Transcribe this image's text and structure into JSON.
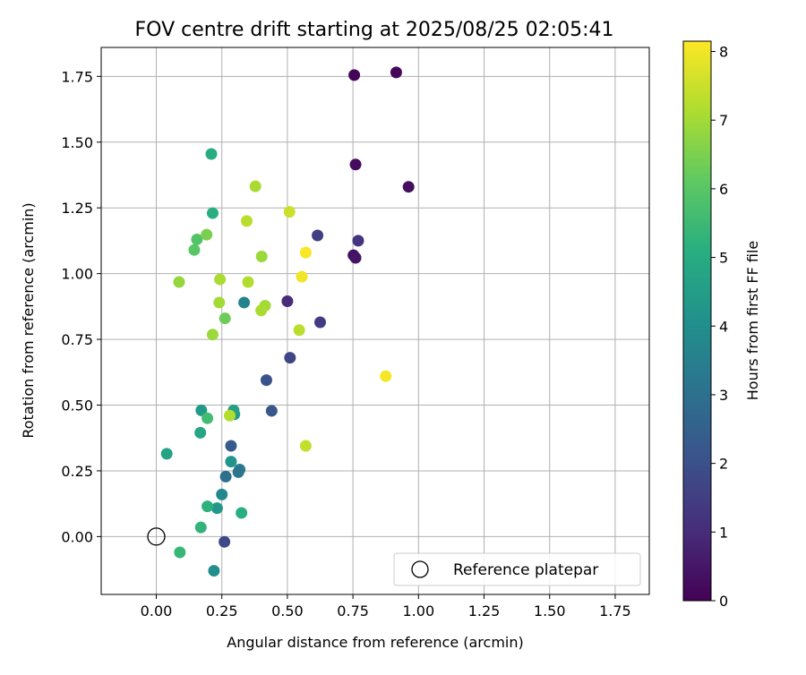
{
  "chart_data": {
    "type": "scatter",
    "title": "FOV centre drift starting at 2025/08/25 02:05:41",
    "xlabel": "Angular distance from reference (arcmin)",
    "ylabel": "Rotation from reference (arcmin)",
    "xlim": [
      -0.21,
      1.88
    ],
    "ylim": [
      -0.22,
      1.86
    ],
    "xticks": [
      "0.00",
      "0.25",
      "0.50",
      "0.75",
      "1.00",
      "1.25",
      "1.50",
      "1.75"
    ],
    "yticks": [
      "0.00",
      "0.25",
      "0.50",
      "0.75",
      "1.00",
      "1.25",
      "1.50",
      "1.75"
    ],
    "grid": true,
    "legend": {
      "placement": "bottom-right",
      "entries": [
        "Reference platepar"
      ]
    },
    "reference_point": {
      "x": 0.0,
      "y": 0.0,
      "label": "Reference platepar"
    },
    "colorbar": {
      "label": "Hours from first FF file",
      "colormap": "viridis",
      "range": [
        0,
        8.15
      ],
      "ticks": [
        "0",
        "1",
        "2",
        "3",
        "4",
        "5",
        "6",
        "7",
        "8"
      ]
    },
    "points": [
      {
        "x": 0.755,
        "y": 1.755,
        "h": 0.1
      },
      {
        "x": 0.915,
        "y": 1.765,
        "h": 0.15
      },
      {
        "x": 0.76,
        "y": 1.415,
        "h": 0.25
      },
      {
        "x": 0.962,
        "y": 1.33,
        "h": 0.3
      },
      {
        "x": 0.752,
        "y": 1.07,
        "h": 0.35
      },
      {
        "x": 0.76,
        "y": 1.06,
        "h": 0.45
      },
      {
        "x": 0.5,
        "y": 0.895,
        "h": 1.0
      },
      {
        "x": 0.77,
        "y": 1.125,
        "h": 1.2
      },
      {
        "x": 0.615,
        "y": 1.145,
        "h": 1.5
      },
      {
        "x": 0.625,
        "y": 0.815,
        "h": 1.4
      },
      {
        "x": 0.51,
        "y": 0.68,
        "h": 1.7
      },
      {
        "x": 0.42,
        "y": 0.595,
        "h": 2.1
      },
      {
        "x": 0.44,
        "y": 0.478,
        "h": 2.2
      },
      {
        "x": 0.26,
        "y": -0.02,
        "h": 1.8
      },
      {
        "x": 0.285,
        "y": 0.345,
        "h": 2.3
      },
      {
        "x": 0.335,
        "y": 0.89,
        "h": 3.6
      },
      {
        "x": 0.318,
        "y": 0.255,
        "h": 3.4
      },
      {
        "x": 0.313,
        "y": 0.245,
        "h": 3.2
      },
      {
        "x": 0.265,
        "y": 0.228,
        "h": 3.0
      },
      {
        "x": 0.25,
        "y": 0.16,
        "h": 3.8
      },
      {
        "x": 0.232,
        "y": 0.108,
        "h": 4.3
      },
      {
        "x": 0.22,
        "y": -0.13,
        "h": 4.0
      },
      {
        "x": 0.285,
        "y": 0.285,
        "h": 4.2
      },
      {
        "x": 0.298,
        "y": 0.465,
        "h": 4.5
      },
      {
        "x": 0.295,
        "y": 0.48,
        "h": 4.6
      },
      {
        "x": 0.172,
        "y": 0.48,
        "h": 4.4
      },
      {
        "x": 0.168,
        "y": 0.395,
        "h": 4.8
      },
      {
        "x": 0.04,
        "y": 0.315,
        "h": 4.7
      },
      {
        "x": 0.325,
        "y": 0.09,
        "h": 5.1
      },
      {
        "x": 0.195,
        "y": 0.115,
        "h": 5.2
      },
      {
        "x": 0.17,
        "y": 0.035,
        "h": 5.3
      },
      {
        "x": 0.09,
        "y": -0.06,
        "h": 5.4
      },
      {
        "x": 0.195,
        "y": 0.45,
        "h": 5.6
      },
      {
        "x": 0.21,
        "y": 1.455,
        "h": 5.0
      },
      {
        "x": 0.215,
        "y": 1.23,
        "h": 5.1
      },
      {
        "x": 0.155,
        "y": 1.13,
        "h": 5.9
      },
      {
        "x": 0.145,
        "y": 1.09,
        "h": 6.0
      },
      {
        "x": 0.192,
        "y": 1.148,
        "h": 6.5
      },
      {
        "x": 0.262,
        "y": 0.83,
        "h": 6.3
      },
      {
        "x": 0.087,
        "y": 0.968,
        "h": 6.8
      },
      {
        "x": 0.243,
        "y": 0.978,
        "h": 7.1
      },
      {
        "x": 0.24,
        "y": 0.89,
        "h": 7.0
      },
      {
        "x": 0.215,
        "y": 0.768,
        "h": 6.9
      },
      {
        "x": 0.35,
        "y": 0.968,
        "h": 7.2
      },
      {
        "x": 0.345,
        "y": 1.2,
        "h": 7.3
      },
      {
        "x": 0.378,
        "y": 1.332,
        "h": 7.1
      },
      {
        "x": 0.402,
        "y": 1.065,
        "h": 6.9
      },
      {
        "x": 0.415,
        "y": 0.878,
        "h": 7.0
      },
      {
        "x": 0.4,
        "y": 0.86,
        "h": 7.1
      },
      {
        "x": 0.28,
        "y": 0.46,
        "h": 7.2
      },
      {
        "x": 0.508,
        "y": 1.235,
        "h": 7.5
      },
      {
        "x": 0.545,
        "y": 0.785,
        "h": 7.3
      },
      {
        "x": 0.57,
        "y": 0.345,
        "h": 7.4
      },
      {
        "x": 0.555,
        "y": 0.988,
        "h": 8.0
      },
      {
        "x": 0.57,
        "y": 1.08,
        "h": 8.1
      },
      {
        "x": 0.875,
        "y": 0.61,
        "h": 8.05
      }
    ]
  }
}
